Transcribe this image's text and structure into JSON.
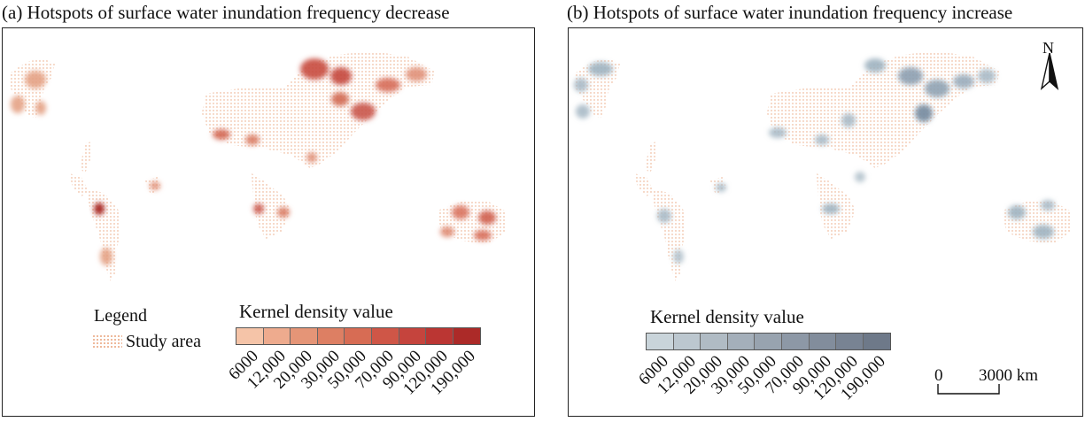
{
  "panels": [
    {
      "title": "(a) Hotspots of surface water inundation frequency decrease",
      "theme": "red",
      "colors": [
        "#f5c4a8",
        "#eeab8e",
        "#e59577",
        "#dd7f63",
        "#d76c54",
        "#cf5647",
        "#c5443d",
        "#bb3633",
        "#ac2a28"
      ],
      "hotspot_color": "#c8543f"
    },
    {
      "title": "(b) Hotspots of surface water inundation frequency increase",
      "theme": "blue",
      "colors": [
        "#c9d4da",
        "#bcc7cf",
        "#b0bbc4",
        "#a4afba",
        "#98a3af",
        "#8d98a6",
        "#828d9c",
        "#788393",
        "#6e7989"
      ],
      "hotspot_color": "#8fa2b3"
    }
  ],
  "legend": {
    "title": "Legend",
    "study_area": "Study area"
  },
  "kernel_density": {
    "title": "Kernel density value",
    "ticks": [
      "6000",
      "12,000",
      "20,000",
      "30,000",
      "50,000",
      "70,000",
      "90,000",
      "120,000",
      "190,000"
    ]
  },
  "scale_bar": {
    "zero": "0",
    "label": "3000 km"
  },
  "north_arrow": {
    "label": "N"
  },
  "study_area_color": "#e9a27a"
}
